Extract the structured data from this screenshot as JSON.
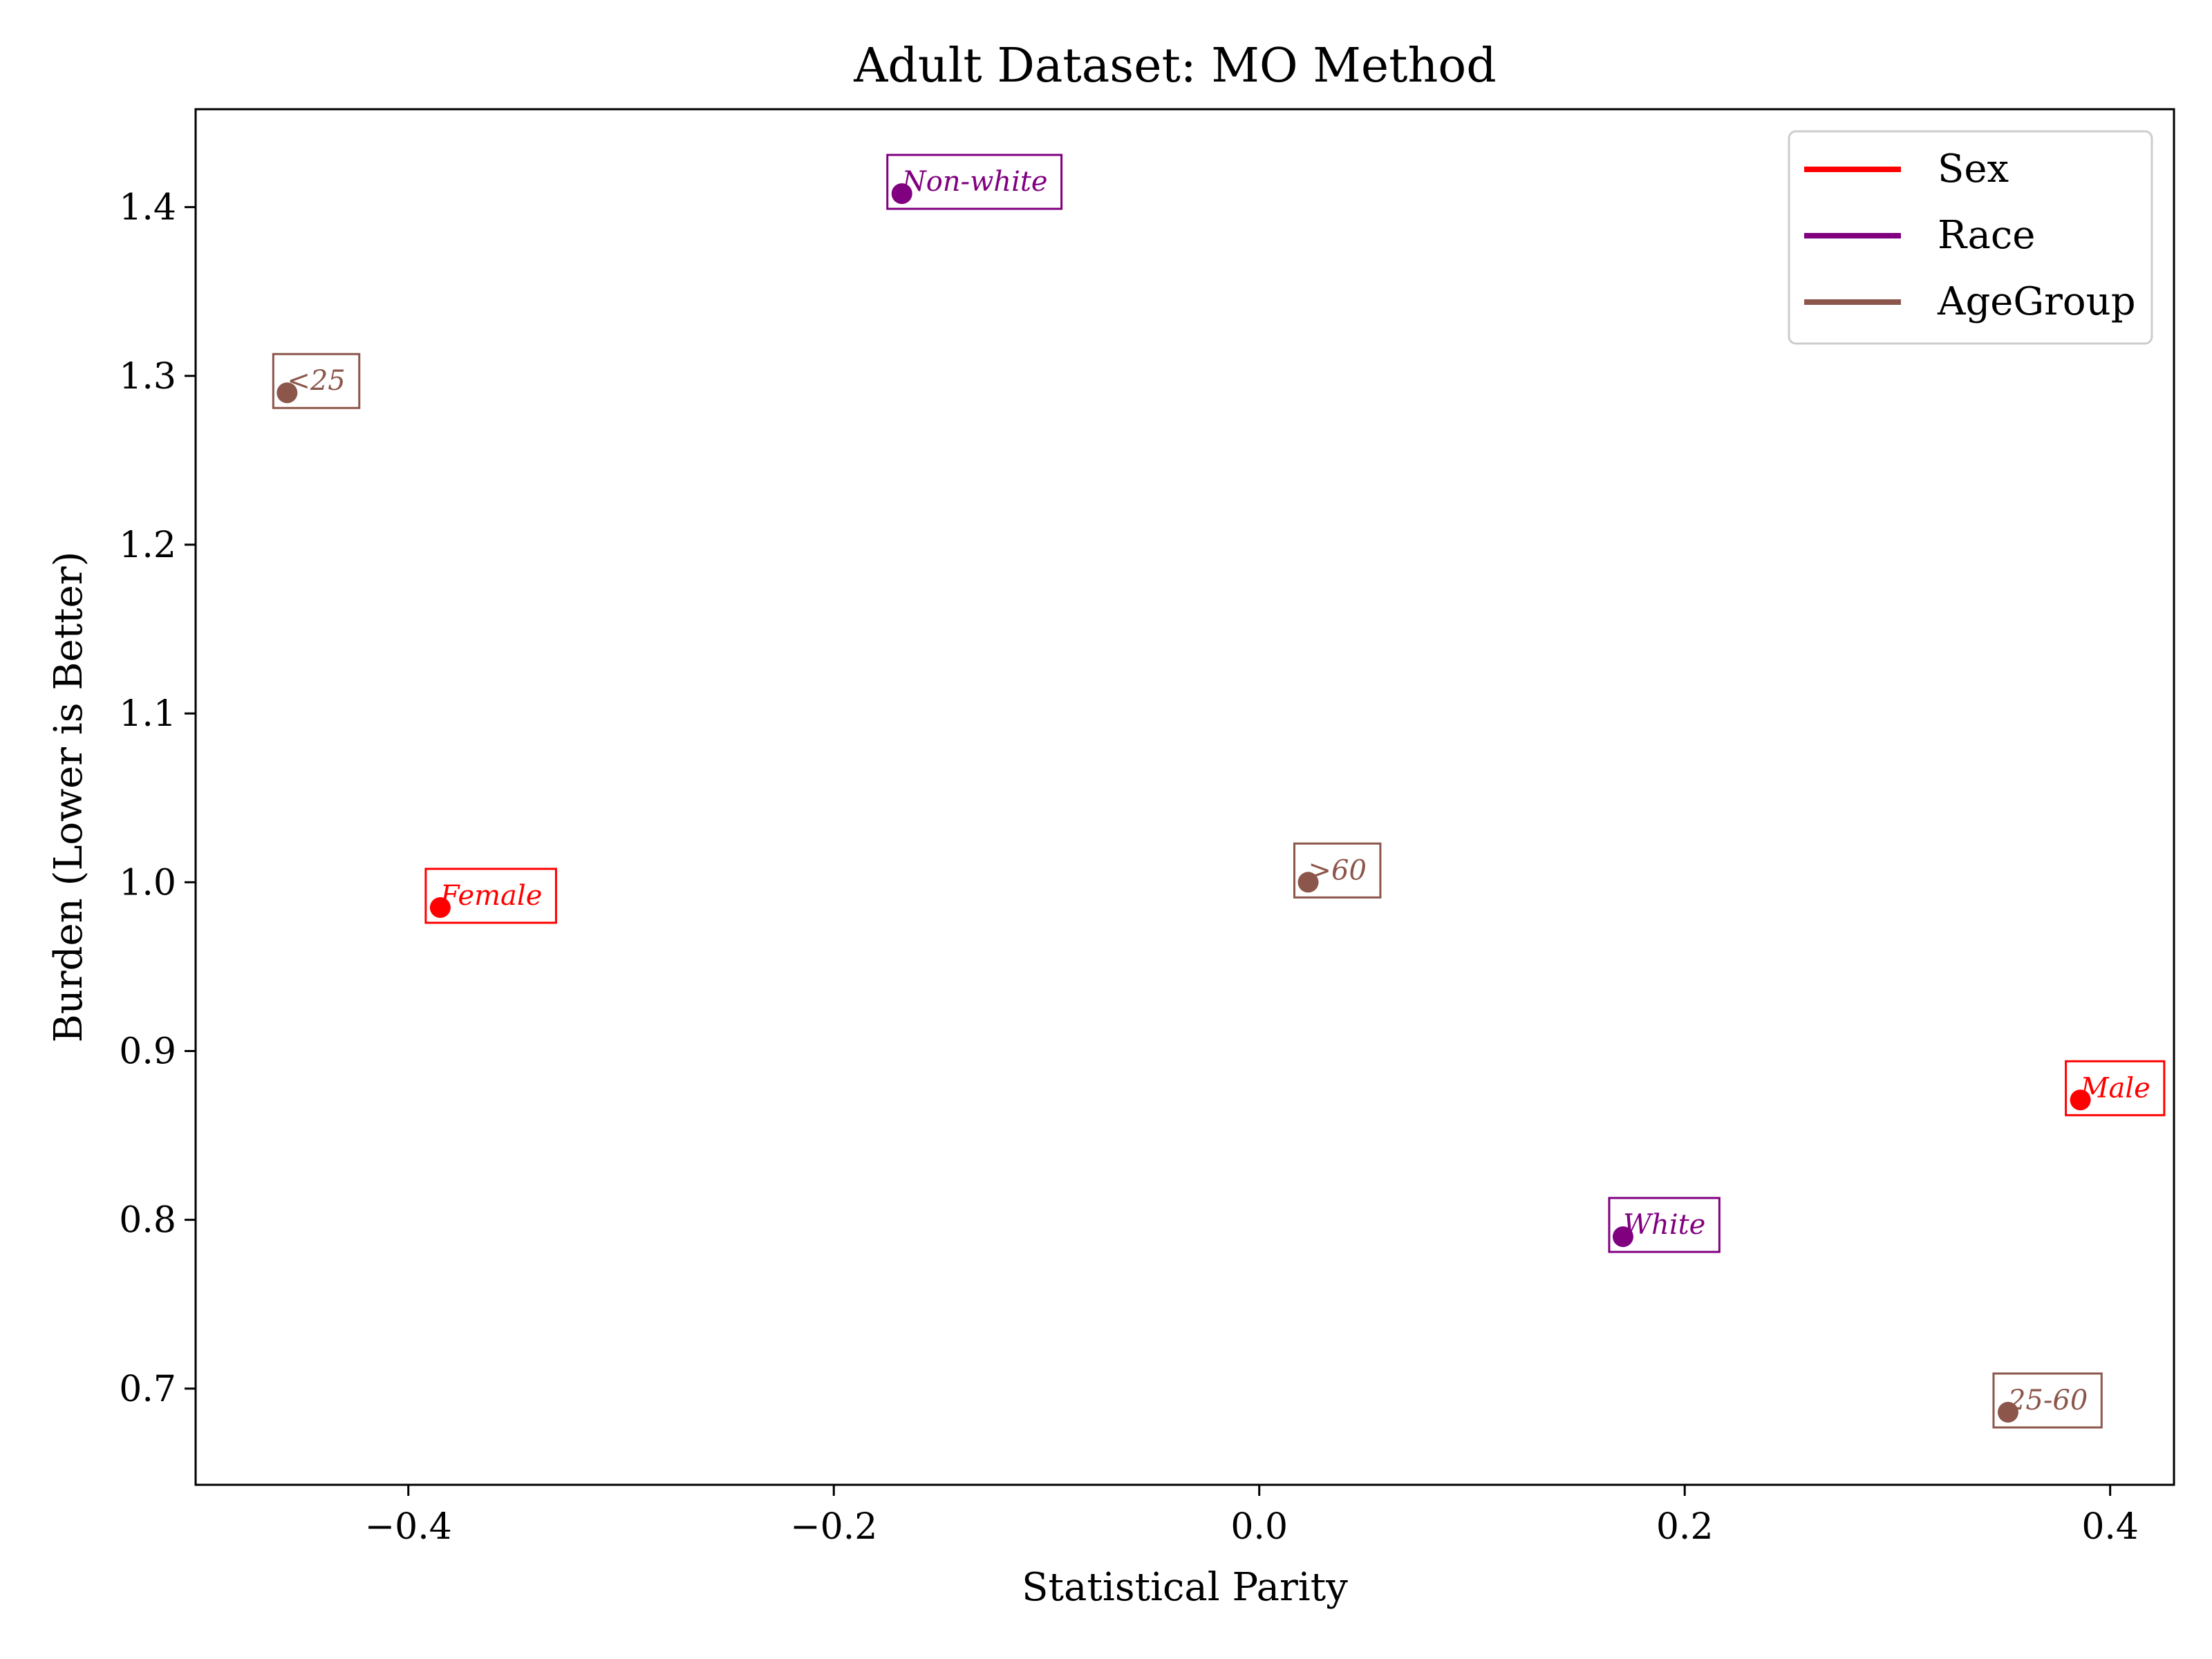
{
  "chart_data": {
    "type": "scatter",
    "title": "Adult Dataset: MO Method",
    "xlabel": "Statistical Parity",
    "ylabel": "Burden (Lower is Better)",
    "xlim": [
      -0.5,
      0.43
    ],
    "ylim": [
      0.643,
      1.458
    ],
    "xticks": [
      -0.4,
      -0.2,
      0.0,
      0.2,
      0.4
    ],
    "xtick_labels": [
      "−0.4",
      "−0.2",
      "0.0",
      "0.2",
      "0.4"
    ],
    "yticks": [
      0.7,
      0.8,
      0.9,
      1.0,
      1.1,
      1.2,
      1.3,
      1.4
    ],
    "ytick_labels": [
      "0.7",
      "0.8",
      "0.9",
      "1.0",
      "1.1",
      "1.2",
      "1.3",
      "1.4"
    ],
    "grid": false,
    "legend_position": "top-right",
    "series": [
      {
        "name": "Sex",
        "color": "#ff0000",
        "points": [
          {
            "label": "Female",
            "x": -0.385,
            "y": 0.985
          },
          {
            "label": "Male",
            "x": 0.386,
            "y": 0.871
          }
        ]
      },
      {
        "name": "Race",
        "color": "#800080",
        "points": [
          {
            "label": "Non-white",
            "x": -0.168,
            "y": 1.408
          },
          {
            "label": "White",
            "x": 0.171,
            "y": 0.79
          }
        ]
      },
      {
        "name": "AgeGroup",
        "color": "#8c564b",
        "points": [
          {
            "label": "<25",
            "x": -0.457,
            "y": 1.29
          },
          {
            "label": ">60",
            "x": 0.023,
            "y": 1.0
          },
          {
            "label": "25-60",
            "x": 0.352,
            "y": 0.686
          }
        ]
      }
    ]
  }
}
